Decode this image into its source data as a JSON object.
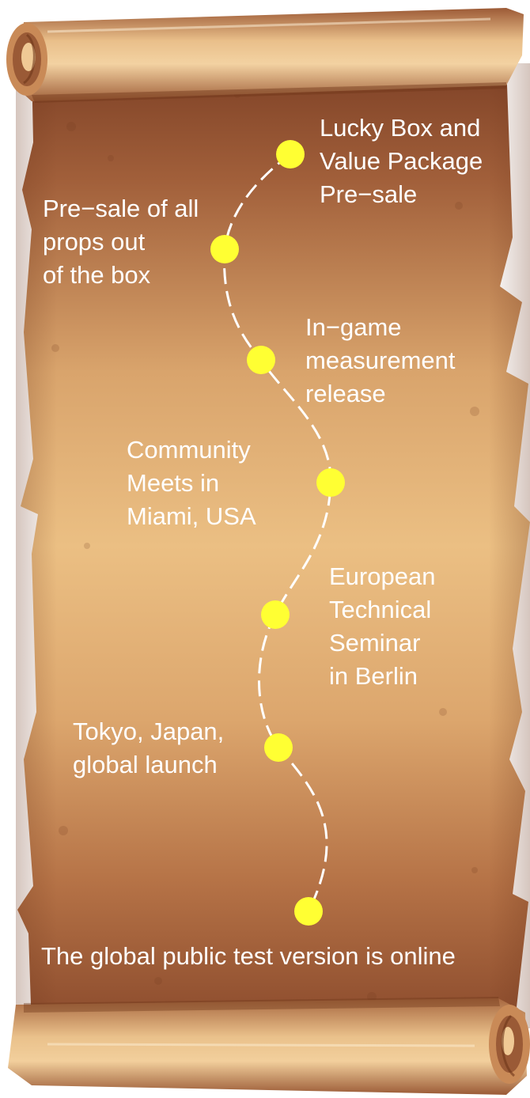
{
  "colors": {
    "parchment_top": "#8a4a2a",
    "parchment_mid": "#e8b97c",
    "parchment_bottom": "#8c4c2c",
    "roll_light": "#f2c993",
    "roll_dark": "#9a5535",
    "dot": "#ffff33",
    "path": "#ffffff",
    "text": "#ffffff"
  },
  "milestones": [
    {
      "id": "m0",
      "label": "Lucky Box and\nValue Package\nPre−sale"
    },
    {
      "id": "m1",
      "label": "Pre−sale of all\nprops out\nof the box"
    },
    {
      "id": "m2",
      "label": "In−game\nmeasurement\nrelease"
    },
    {
      "id": "m3",
      "label": "Community\nMeets in\nMiami, USA"
    },
    {
      "id": "m4",
      "label": "European\nTechnical\nSeminar\nin Berlin"
    },
    {
      "id": "m5",
      "label": "Tokyo, Japan,\nglobal launch"
    },
    {
      "id": "m6",
      "label": "The global public test version is online"
    }
  ]
}
